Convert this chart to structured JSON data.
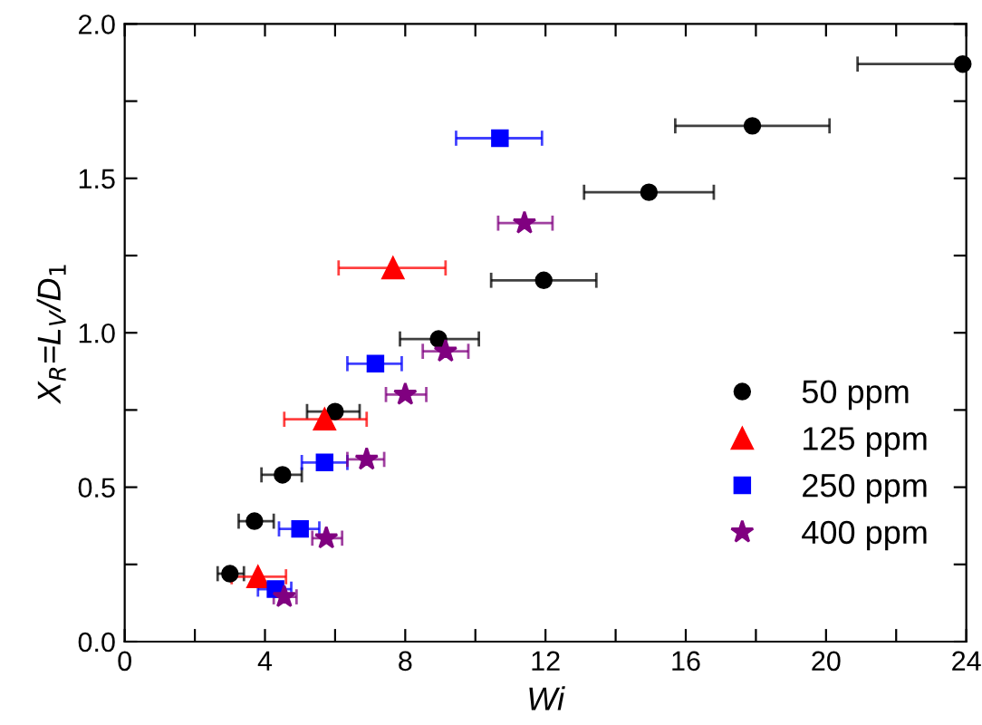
{
  "chart_data": {
    "type": "scatter",
    "xlabel": "Wi",
    "ylabel": "X$_{R}$=L$_{V}$/D$_{1}$",
    "xlim": [
      0,
      24
    ],
    "ylim": [
      0,
      2.0
    ],
    "xticks": [
      0,
      {
        "value": 2,
        "label": null
      },
      4,
      {
        "value": 6,
        "label": null
      },
      8,
      {
        "value": 10,
        "label": null
      },
      12,
      {
        "value": 14,
        "label": null
      },
      16,
      {
        "value": 18,
        "label": null
      },
      20,
      {
        "value": 22,
        "label": null
      },
      24
    ],
    "yticks": [
      {
        "value": 0,
        "label": "0.0"
      },
      {
        "value": 0.25,
        "label": null
      },
      0.5,
      {
        "value": 0.75,
        "label": null
      },
      {
        "value": 1,
        "label": "1.0"
      },
      {
        "value": 1.25,
        "label": null
      },
      1.5,
      {
        "value": 1.75,
        "label": null
      },
      {
        "value": 2,
        "label": "2.0"
      }
    ],
    "grid": false,
    "legend": "bottom right",
    "series": [
      {
        "name": "50 ppm",
        "color": "#000000",
        "marker": "circle",
        "x": [
          3.0,
          3.7,
          4.5,
          6.0,
          8.95,
          11.95,
          14.95,
          17.9,
          23.9
        ],
        "values": [
          0.22,
          0.39,
          0.54,
          0.745,
          0.98,
          1.17,
          1.455,
          1.67,
          1.87
        ],
        "xerrors": [
          [
            2.65,
            3.4
          ],
          [
            3.25,
            4.25
          ],
          [
            3.9,
            5.05
          ],
          [
            5.2,
            6.7
          ],
          [
            7.85,
            10.1
          ],
          [
            10.45,
            13.45
          ],
          [
            13.1,
            16.8
          ],
          [
            15.7,
            20.1
          ],
          [
            20.9,
            24
          ]
        ]
      },
      {
        "name": "125 ppm",
        "color": "#ff0000",
        "marker": "triangle",
        "x": [
          3.8,
          5.7,
          7.65
        ],
        "values": [
          0.21,
          0.72,
          1.21
        ],
        "xerrors": [
          [
            3.05,
            4.6
          ],
          [
            4.55,
            6.9
          ],
          [
            6.1,
            9.15
          ]
        ]
      },
      {
        "name": "250 ppm",
        "color": "#0000ff",
        "marker": "square",
        "x": [
          4.3,
          5.0,
          5.7,
          7.15,
          10.7
        ],
        "values": [
          0.17,
          0.365,
          0.58,
          0.9,
          1.63
        ],
        "xerrors": [
          [
            3.8,
            4.75
          ],
          [
            4.4,
            5.55
          ],
          [
            5.05,
            6.35
          ],
          [
            6.35,
            7.9
          ],
          [
            9.45,
            11.9
          ]
        ]
      },
      {
        "name": "400 ppm",
        "color": "#800080",
        "marker": "star",
        "x": [
          4.55,
          5.75,
          6.9,
          8.0,
          9.15,
          11.4
        ],
        "values": [
          0.145,
          0.335,
          0.59,
          0.8,
          0.94,
          1.355
        ],
        "xerrors": [
          [
            4.25,
            4.9
          ],
          [
            5.35,
            6.2
          ],
          [
            6.35,
            7.4
          ],
          [
            7.45,
            8.6
          ],
          [
            8.5,
            9.8
          ],
          [
            10.65,
            12.2
          ]
        ]
      }
    ]
  }
}
